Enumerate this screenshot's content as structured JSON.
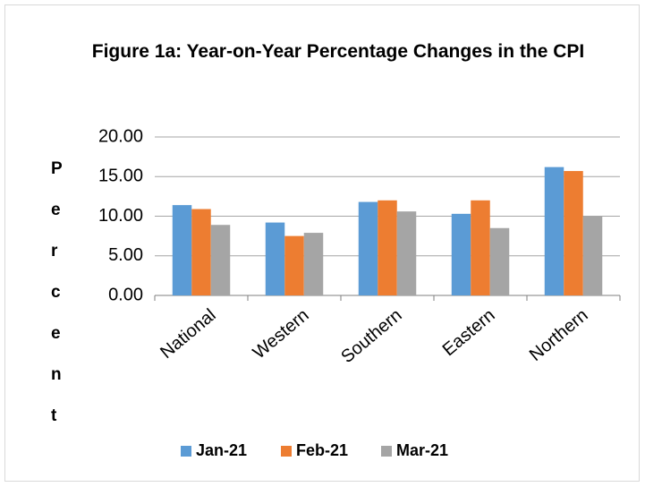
{
  "chart_data": {
    "type": "bar",
    "title": "Figure 1a: Year-on-Year Percentage Changes in the CPI",
    "y_label": "Percent",
    "categories": [
      "National",
      "Western",
      "Southern",
      "Eastern",
      "Northern"
    ],
    "series": [
      {
        "name": "Jan-21",
        "color": "#5b9bd5",
        "values": [
          11.4,
          9.2,
          11.8,
          10.3,
          16.2
        ]
      },
      {
        "name": "Feb-21",
        "color": "#ed7d31",
        "values": [
          10.9,
          7.5,
          12.0,
          12.0,
          15.7
        ]
      },
      {
        "name": "Mar-21",
        "color": "#a5a5a5",
        "values": [
          8.9,
          7.9,
          10.6,
          8.5,
          10.0
        ]
      }
    ],
    "ylim": [
      0,
      20
    ],
    "yticks": [
      {
        "value": 0,
        "label": "0.00"
      },
      {
        "value": 5,
        "label": "5.00"
      },
      {
        "value": 10,
        "label": "10.00"
      },
      {
        "value": 15,
        "label": "15.00"
      },
      {
        "value": 20,
        "label": "20.00"
      }
    ],
    "grid": true,
    "legend": "bottom"
  }
}
